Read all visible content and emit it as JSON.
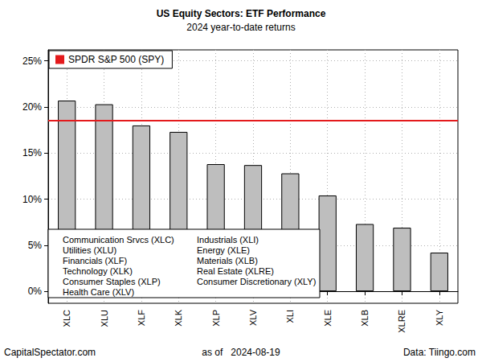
{
  "chart_data": {
    "type": "bar",
    "title": "US Equity Sectors: ETF Performance",
    "subtitle": "2024 year-to-date returns",
    "categories": [
      "XLC",
      "XLU",
      "XLF",
      "XLK",
      "XLP",
      "XLV",
      "XLI",
      "XLE",
      "XLB",
      "XLRE",
      "XLY"
    ],
    "values": [
      20.7,
      20.3,
      18.0,
      17.3,
      13.8,
      13.7,
      12.8,
      10.4,
      7.3,
      6.9,
      4.2
    ],
    "color": "#bebebe",
    "ylim": [
      -1.3,
      26.2
    ],
    "yticks": [
      {
        "value": 0,
        "label": "0%"
      },
      {
        "value": 5,
        "label": "5%"
      },
      {
        "value": 10,
        "label": "10%"
      },
      {
        "value": 15,
        "label": "15%"
      },
      {
        "value": 20,
        "label": "20%"
      },
      {
        "value": 25,
        "label": "25%"
      }
    ],
    "grid": true,
    "legend": "top-left",
    "reference_lines": [
      {
        "name": "SPDR S&P 500 (SPY)",
        "value": 18.5,
        "color": "#e41a1c"
      }
    ],
    "annotations": [
      "Communication Srvcs (XLC)",
      "Utilities (XLU)",
      "Financials (XLF)",
      "Technology (XLK)",
      "Consumer Staples (XLP)",
      "Health Care (XLV)",
      "Industrials (XLI)",
      "Energy (XLE)",
      "Materials (XLB)",
      "Real Estate (XLRE)",
      "Consumer Discretionary (XLY)"
    ],
    "footer": {
      "left": "CapitalSpectator.com",
      "center": "as of   2024-08-19",
      "right": "Data: Tiingo.com"
    }
  }
}
